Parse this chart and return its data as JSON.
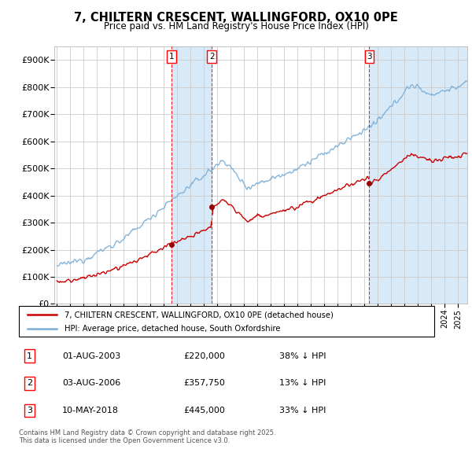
{
  "title": "7, CHILTERN CRESCENT, WALLINGFORD, OX10 0PE",
  "subtitle": "Price paid vs. HM Land Registry's House Price Index (HPI)",
  "ylim": [
    0,
    950000
  ],
  "yticks": [
    0,
    100000,
    200000,
    300000,
    400000,
    500000,
    600000,
    700000,
    800000,
    900000
  ],
  "ytick_labels": [
    "£0",
    "£100K",
    "£200K",
    "£300K",
    "£400K",
    "£500K",
    "£600K",
    "£700K",
    "£800K",
    "£900K"
  ],
  "xlim_start": 1994.8,
  "xlim_end": 2025.7,
  "transactions": [
    {
      "label": "1",
      "date": "01-AUG-2003",
      "year": 2003.58,
      "price": 220000,
      "hpi_diff": "38% ↓ HPI"
    },
    {
      "label": "2",
      "date": "03-AUG-2006",
      "year": 2006.58,
      "price": 357750,
      "hpi_diff": "13% ↓ HPI"
    },
    {
      "label": "3",
      "date": "10-MAY-2018",
      "year": 2018.37,
      "price": 445000,
      "hpi_diff": "33% ↓ HPI"
    }
  ],
  "legend_property": "7, CHILTERN CRESCENT, WALLINGFORD, OX10 0PE (detached house)",
  "legend_hpi": "HPI: Average price, detached house, South Oxfordshire",
  "footer": "Contains HM Land Registry data © Crown copyright and database right 2025.\nThis data is licensed under the Open Government Licence v3.0.",
  "property_color": "#cc0000",
  "hpi_color": "#7aaed6",
  "background_color": "#ffffff",
  "grid_color": "#cccccc",
  "shading_color": "#d8eaf8",
  "marker_color": "#990000"
}
